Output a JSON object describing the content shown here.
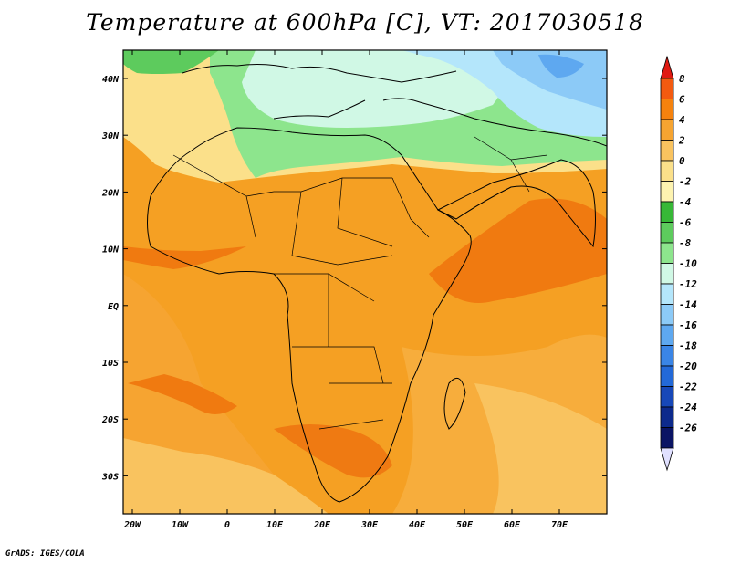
{
  "map": {
    "title": "Temperature at 600hPa [C], VT: 2017030518",
    "variable": "Temperature at 600hPa",
    "units": "C",
    "valid_time": "2017030518",
    "lon_labels": [
      "20W",
      "10W",
      "0",
      "10E",
      "20E",
      "30E",
      "40E",
      "50E",
      "60E",
      "70E"
    ],
    "lat_labels": [
      "40N",
      "30N",
      "20N",
      "10N",
      "EQ",
      "10S",
      "20S",
      "30S"
    ],
    "footer": "GrADS: IGES/COLA"
  },
  "colorbar": {
    "labels": [
      "8",
      "6",
      "4",
      "2",
      "0",
      "-2",
      "-4",
      "-6",
      "-8",
      "-10",
      "-12",
      "-14",
      "-16",
      "-18",
      "-20",
      "-22",
      "-24",
      "-26"
    ],
    "colors": [
      "#e01a12",
      "#f35a10",
      "#f5820e",
      "#f6a431",
      "#f9c35f",
      "#fbe08a",
      "#fdf3b0",
      "#37b837",
      "#5dcb5d",
      "#8de58d",
      "#d0f8e5",
      "#b4e6fb",
      "#8ccaf7",
      "#5ea8f0",
      "#3a85e6",
      "#2369d8",
      "#1748b8",
      "#0d2a8c",
      "#0a1464",
      "#e0e0ff"
    ]
  }
}
